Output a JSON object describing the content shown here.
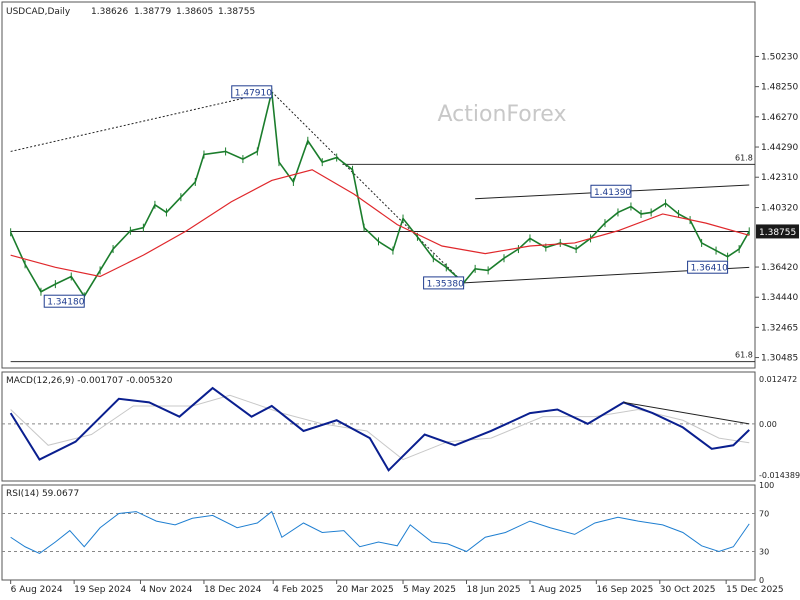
{
  "chart_data": [
    {
      "type": "line",
      "panel": "price",
      "header": {
        "symbol": "USDCAD,Daily",
        "open": "1.38626",
        "high": "1.38779",
        "low": "1.38605",
        "close": "1.38755"
      },
      "watermark": "ActionForex",
      "ylim": [
        1.298,
        1.538
      ],
      "yticks": [
        "1.50230",
        "1.48250",
        "1.46270",
        "1.44290",
        "1.42310",
        "1.40320",
        "1.36420",
        "1.34440",
        "1.32465",
        "1.30485"
      ],
      "current_price_label": "1.38755",
      "xticks": [
        "6 Aug 2024",
        "19 Sep 2024",
        "4 Nov 2024",
        "18 Dec 2024",
        "4 Feb 2025",
        "20 Mar 2025",
        "5 May 2025",
        "18 Jun 2025",
        "1 Aug 2025",
        "16 Sep 2025",
        "30 Oct 2025",
        "15 Dec 2025"
      ],
      "price_series": [
        {
          "date": "2024-08-06",
          "close": 1.387
        },
        {
          "date": "2024-08-16",
          "close": 1.366
        },
        {
          "date": "2024-08-27",
          "close": 1.348
        },
        {
          "date": "2024-09-06",
          "close": 1.353
        },
        {
          "date": "2024-09-17",
          "close": 1.358
        },
        {
          "date": "2024-09-26",
          "close": 1.345
        },
        {
          "date": "2024-10-07",
          "close": 1.362
        },
        {
          "date": "2024-10-16",
          "close": 1.376
        },
        {
          "date": "2024-10-28",
          "close": 1.388
        },
        {
          "date": "2024-11-06",
          "close": 1.39
        },
        {
          "date": "2024-11-14",
          "close": 1.405
        },
        {
          "date": "2024-11-22",
          "close": 1.4
        },
        {
          "date": "2024-12-02",
          "close": 1.41
        },
        {
          "date": "2024-12-12",
          "close": 1.42
        },
        {
          "date": "2024-12-18",
          "close": 1.438
        },
        {
          "date": "2025-01-02",
          "close": 1.44
        },
        {
          "date": "2025-01-14",
          "close": 1.435
        },
        {
          "date": "2025-01-24",
          "close": 1.44
        },
        {
          "date": "2025-02-03",
          "close": 1.4791
        },
        {
          "date": "2025-02-08",
          "close": 1.433
        },
        {
          "date": "2025-02-18",
          "close": 1.42
        },
        {
          "date": "2025-02-28",
          "close": 1.447
        },
        {
          "date": "2025-03-10",
          "close": 1.433
        },
        {
          "date": "2025-03-20",
          "close": 1.436
        },
        {
          "date": "2025-03-31",
          "close": 1.428
        },
        {
          "date": "2025-04-08",
          "close": 1.39
        },
        {
          "date": "2025-04-18",
          "close": 1.381
        },
        {
          "date": "2025-04-28",
          "close": 1.375
        },
        {
          "date": "2025-05-05",
          "close": 1.396
        },
        {
          "date": "2025-05-15",
          "close": 1.384
        },
        {
          "date": "2025-05-26",
          "close": 1.37
        },
        {
          "date": "2025-06-04",
          "close": 1.364
        },
        {
          "date": "2025-06-16",
          "close": 1.3538
        },
        {
          "date": "2025-06-24",
          "close": 1.363
        },
        {
          "date": "2025-07-03",
          "close": 1.362
        },
        {
          "date": "2025-07-14",
          "close": 1.37
        },
        {
          "date": "2025-07-24",
          "close": 1.376
        },
        {
          "date": "2025-08-01",
          "close": 1.383
        },
        {
          "date": "2025-08-12",
          "close": 1.377
        },
        {
          "date": "2025-08-22",
          "close": 1.38
        },
        {
          "date": "2025-09-02",
          "close": 1.376
        },
        {
          "date": "2025-09-12",
          "close": 1.383
        },
        {
          "date": "2025-09-22",
          "close": 1.393
        },
        {
          "date": "2025-10-01",
          "close": 1.4
        },
        {
          "date": "2025-10-10",
          "close": 1.4039
        },
        {
          "date": "2025-10-17",
          "close": 1.399
        },
        {
          "date": "2025-10-24",
          "close": 1.4
        },
        {
          "date": "2025-11-03",
          "close": 1.406
        },
        {
          "date": "2025-11-12",
          "close": 1.399
        },
        {
          "date": "2025-11-20",
          "close": 1.395
        },
        {
          "date": "2025-11-28",
          "close": 1.38
        },
        {
          "date": "2025-12-08",
          "close": 1.375
        },
        {
          "date": "2025-12-16",
          "close": 1.371
        },
        {
          "date": "2025-12-24",
          "close": 1.376
        },
        {
          "date": "2025-12-31",
          "close": 1.3876
        }
      ],
      "moving_average": {
        "color": "#e0282c",
        "points": [
          {
            "date": "2024-08-06",
            "value": 1.372
          },
          {
            "date": "2024-09-06",
            "value": 1.364
          },
          {
            "date": "2024-10-07",
            "value": 1.358
          },
          {
            "date": "2024-11-06",
            "value": 1.372
          },
          {
            "date": "2024-12-06",
            "value": 1.388
          },
          {
            "date": "2025-01-06",
            "value": 1.407
          },
          {
            "date": "2025-02-03",
            "value": 1.421
          },
          {
            "date": "2025-03-03",
            "value": 1.428
          },
          {
            "date": "2025-04-01",
            "value": 1.412
          },
          {
            "date": "2025-05-01",
            "value": 1.392
          },
          {
            "date": "2025-06-01",
            "value": 1.378
          },
          {
            "date": "2025-07-01",
            "value": 1.373
          },
          {
            "date": "2025-08-01",
            "value": 1.378
          },
          {
            "date": "2025-09-01",
            "value": 1.38
          },
          {
            "date": "2025-10-01",
            "value": 1.388
          },
          {
            "date": "2025-11-01",
            "value": 1.399
          },
          {
            "date": "2025-12-01",
            "value": 1.393
          },
          {
            "date": "2025-12-31",
            "value": 1.385
          }
        ]
      },
      "annotations": [
        {
          "label": "1.47910",
          "date": "2025-02-03",
          "price": 1.4791
        },
        {
          "label": "1.34180",
          "date": "2024-09-26",
          "price": 1.3418
        },
        {
          "label": "1.35380",
          "date": "2025-06-16",
          "price": 1.3538
        },
        {
          "label": "1.41390",
          "date": "2025-10-10",
          "price": 1.4139
        },
        {
          "label": "1.36410",
          "date": "2025-12-16",
          "price": 1.3641
        }
      ],
      "fib_levels": [
        {
          "label": "61.8",
          "price": 1.4315,
          "from": "2025-03-24"
        },
        {
          "label": "61.8",
          "price": 1.3022,
          "from": "2024-08-06"
        }
      ],
      "trendlines": [
        {
          "style": "dotted",
          "from": {
            "date": "2024-08-06",
            "price": 1.44
          },
          "to": {
            "date": "2025-02-03",
            "price": 1.4791
          }
        },
        {
          "style": "dotted",
          "from": {
            "date": "2025-02-03",
            "price": 1.4791
          },
          "to": {
            "date": "2025-06-16",
            "price": 1.3538
          }
        },
        {
          "style": "solid",
          "from": {
            "date": "2025-06-16",
            "price": 1.3538
          },
          "to": {
            "date": "2025-12-31",
            "price": 1.364
          }
        },
        {
          "style": "solid",
          "from": {
            "date": "2025-06-24",
            "price": 1.409
          },
          "to": {
            "date": "2025-12-31",
            "price": 1.418
          }
        },
        {
          "style": "solid",
          "from": {
            "date": "2024-08-06",
            "price": 1.3875
          },
          "to": {
            "date": "2025-12-31",
            "price": 1.3875
          }
        }
      ]
    },
    {
      "type": "line",
      "panel": "macd",
      "header": "MACD(12,26,9) -0.001707 -0.005320",
      "ylim": [
        -0.016,
        0.0145
      ],
      "yticks": [
        "0.012472",
        "0.00",
        "-0.014389"
      ],
      "series": [
        {
          "color": "#0a1f8f",
          "points": [
            {
              "date": "2024-08-06",
              "value": 0.003
            },
            {
              "date": "2024-08-26",
              "value": -0.01
            },
            {
              "date": "2024-09-20",
              "value": -0.005
            },
            {
              "date": "2024-10-20",
              "value": 0.007
            },
            {
              "date": "2024-11-10",
              "value": 0.006
            },
            {
              "date": "2024-12-01",
              "value": 0.002
            },
            {
              "date": "2024-12-24",
              "value": 0.01
            },
            {
              "date": "2025-01-20",
              "value": 0.002
            },
            {
              "date": "2025-02-03",
              "value": 0.005
            },
            {
              "date": "2025-02-25",
              "value": -0.002
            },
            {
              "date": "2025-03-20",
              "value": 0.001
            },
            {
              "date": "2025-04-12",
              "value": -0.004
            },
            {
              "date": "2025-04-25",
              "value": -0.013
            },
            {
              "date": "2025-05-20",
              "value": -0.003
            },
            {
              "date": "2025-06-10",
              "value": -0.006
            },
            {
              "date": "2025-07-05",
              "value": -0.002
            },
            {
              "date": "2025-08-01",
              "value": 0.003
            },
            {
              "date": "2025-08-20",
              "value": 0.004
            },
            {
              "date": "2025-09-10",
              "value": 0.0
            },
            {
              "date": "2025-10-05",
              "value": 0.006
            },
            {
              "date": "2025-10-25",
              "value": 0.003
            },
            {
              "date": "2025-11-15",
              "value": -0.001
            },
            {
              "date": "2025-12-05",
              "value": -0.007
            },
            {
              "date": "2025-12-20",
              "value": -0.006
            },
            {
              "date": "2025-12-31",
              "value": -0.0017
            }
          ]
        },
        {
          "color": "#c8c8c8",
          "points": [
            {
              "date": "2024-08-06",
              "value": 0.004
            },
            {
              "date": "2024-09-01",
              "value": -0.006
            },
            {
              "date": "2024-10-01",
              "value": -0.003
            },
            {
              "date": "2024-10-30",
              "value": 0.005
            },
            {
              "date": "2024-12-10",
              "value": 0.005
            },
            {
              "date": "2025-01-05",
              "value": 0.008
            },
            {
              "date": "2025-02-10",
              "value": 0.003
            },
            {
              "date": "2025-03-10",
              "value": 0.0
            },
            {
              "date": "2025-04-10",
              "value": -0.002
            },
            {
              "date": "2025-05-05",
              "value": -0.01
            },
            {
              "date": "2025-06-05",
              "value": -0.005
            },
            {
              "date": "2025-07-05",
              "value": -0.004
            },
            {
              "date": "2025-08-10",
              "value": 0.002
            },
            {
              "date": "2025-09-15",
              "value": 0.002
            },
            {
              "date": "2025-10-15",
              "value": 0.004
            },
            {
              "date": "2025-11-15",
              "value": 0.001
            },
            {
              "date": "2025-12-10",
              "value": -0.004
            },
            {
              "date": "2025-12-31",
              "value": -0.0053
            }
          ]
        }
      ],
      "trendline": {
        "from": {
          "date": "2025-10-05",
          "value": 0.006
        },
        "to": {
          "date": "2025-12-31",
          "value": 0.0
        }
      }
    },
    {
      "type": "line",
      "panel": "rsi",
      "header": "RSI(14) 59.0677",
      "ylim": [
        0,
        100
      ],
      "yticks": [
        "100",
        "70",
        "30",
        "0"
      ],
      "levels": [
        70,
        30
      ],
      "series": [
        {
          "color": "#1f7fd1",
          "points": [
            {
              "date": "2024-08-06",
              "value": 45
            },
            {
              "date": "2024-08-16",
              "value": 35
            },
            {
              "date": "2024-08-26",
              "value": 28
            },
            {
              "date": "2024-09-06",
              "value": 40
            },
            {
              "date": "2024-09-16",
              "value": 52
            },
            {
              "date": "2024-09-26",
              "value": 35
            },
            {
              "date": "2024-10-07",
              "value": 55
            },
            {
              "date": "2024-10-20",
              "value": 70
            },
            {
              "date": "2024-11-01",
              "value": 72
            },
            {
              "date": "2024-11-15",
              "value": 62
            },
            {
              "date": "2024-11-28",
              "value": 58
            },
            {
              "date": "2024-12-10",
              "value": 65
            },
            {
              "date": "2024-12-24",
              "value": 68
            },
            {
              "date": "2025-01-10",
              "value": 55
            },
            {
              "date": "2025-01-24",
              "value": 60
            },
            {
              "date": "2025-02-03",
              "value": 72
            },
            {
              "date": "2025-02-10",
              "value": 45
            },
            {
              "date": "2025-02-25",
              "value": 60
            },
            {
              "date": "2025-03-10",
              "value": 50
            },
            {
              "date": "2025-03-25",
              "value": 52
            },
            {
              "date": "2025-04-05",
              "value": 35
            },
            {
              "date": "2025-04-18",
              "value": 40
            },
            {
              "date": "2025-05-01",
              "value": 36
            },
            {
              "date": "2025-05-10",
              "value": 58
            },
            {
              "date": "2025-05-25",
              "value": 40
            },
            {
              "date": "2025-06-05",
              "value": 38
            },
            {
              "date": "2025-06-18",
              "value": 30
            },
            {
              "date": "2025-07-01",
              "value": 45
            },
            {
              "date": "2025-07-15",
              "value": 50
            },
            {
              "date": "2025-08-01",
              "value": 62
            },
            {
              "date": "2025-08-15",
              "value": 55
            },
            {
              "date": "2025-09-01",
              "value": 48
            },
            {
              "date": "2025-09-15",
              "value": 60
            },
            {
              "date": "2025-10-01",
              "value": 66
            },
            {
              "date": "2025-10-15",
              "value": 62
            },
            {
              "date": "2025-11-01",
              "value": 58
            },
            {
              "date": "2025-11-15",
              "value": 50
            },
            {
              "date": "2025-11-28",
              "value": 36
            },
            {
              "date": "2025-12-10",
              "value": 30
            },
            {
              "date": "2025-12-20",
              "value": 35
            },
            {
              "date": "2025-12-31",
              "value": 59.07
            }
          ]
        }
      ]
    }
  ]
}
